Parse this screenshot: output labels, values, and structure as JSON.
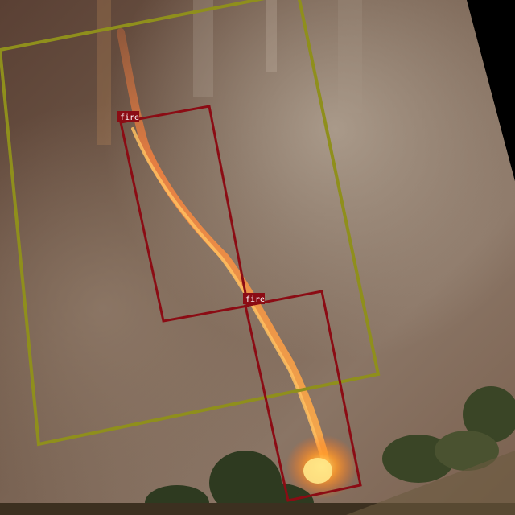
{
  "detections": [
    {
      "label": "fire"
    },
    {
      "label": "fire"
    }
  ],
  "colors": {
    "fire_box": "#8b0c14",
    "context_box": "#8f8f1c",
    "label_bg": "#8b0c14",
    "label_text": "#ffffff",
    "background": "#000000"
  },
  "icons": []
}
